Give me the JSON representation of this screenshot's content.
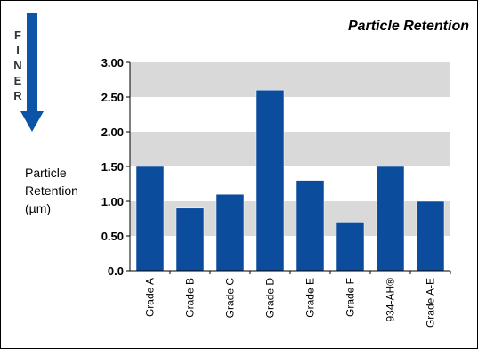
{
  "finer_label": [
    "F",
    "I",
    "N",
    "E",
    "R"
  ],
  "chart_data": {
    "type": "bar",
    "title": "Particle Retention",
    "ylabel_lines": [
      "Particle",
      "Retention",
      "(µm)"
    ],
    "categories": [
      "Grade A",
      "Grade B",
      "Grade C",
      "Grade D",
      "Grade E",
      "Grade F",
      "934-AH®",
      "Grade A-E"
    ],
    "values": [
      1.5,
      0.9,
      1.1,
      2.6,
      1.3,
      0.7,
      1.5,
      1.0
    ],
    "ylim": [
      0,
      3.0
    ],
    "yticks": [
      "0.0",
      "0.50",
      "1.00",
      "1.50",
      "2.00",
      "2.50",
      "3.00"
    ],
    "grid": "striped-bands",
    "legend": "none"
  },
  "colors": {
    "bar": "#0b4c9c",
    "arrow": "#0b54a8",
    "band": "#d9d9d9",
    "axis": "#000000"
  }
}
